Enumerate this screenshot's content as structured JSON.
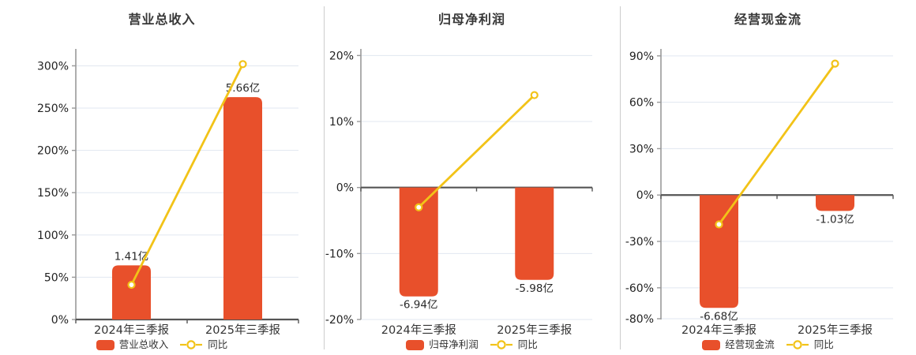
{
  "colors": {
    "bar": "#E8502B",
    "line": "#F2C318",
    "grid": "#E1E7F0",
    "zero_axis": "#555555",
    "y_axis": "#999999",
    "divider": "#CCCCCC",
    "title_text": "#383838",
    "tick_text": "#222222"
  },
  "chart_data": [
    {
      "type": "bar",
      "title": "营业总收入",
      "categories": [
        "2024年三季报",
        "2025年三季报"
      ],
      "series": [
        {
          "name": "营业总收入",
          "kind": "bar",
          "unit": "亿",
          "values": [
            1.41,
            5.66
          ],
          "labels": [
            "1.41亿",
            "5.66亿"
          ],
          "bar_axis_pct": [
            64,
            263
          ]
        },
        {
          "name": "同比",
          "kind": "line",
          "unit": "%",
          "values": [
            41,
            302
          ]
        }
      ],
      "yticks": [
        0,
        50,
        100,
        150,
        200,
        250,
        300
      ],
      "ylim": [
        0,
        320
      ],
      "ytick_suffix": "%",
      "legend_position": "bottom",
      "grid": true
    },
    {
      "type": "bar",
      "title": "归母净利润",
      "categories": [
        "2024年三季报",
        "2025年三季报"
      ],
      "series": [
        {
          "name": "归母净利润",
          "kind": "bar",
          "unit": "亿",
          "values": [
            -6.94,
            -5.98
          ],
          "labels": [
            "-6.94亿",
            "-5.98亿"
          ],
          "bar_axis_pct": [
            -16.5,
            -14.0
          ]
        },
        {
          "name": "同比",
          "kind": "line",
          "unit": "%",
          "values": [
            -3,
            14
          ]
        }
      ],
      "yticks": [
        -20,
        -10,
        0,
        10,
        20
      ],
      "ylim": [
        -20,
        21
      ],
      "ytick_suffix": "%",
      "legend_position": "bottom",
      "grid": true
    },
    {
      "type": "bar",
      "title": "经营现金流",
      "categories": [
        "2024年三季报",
        "2025年三季报"
      ],
      "series": [
        {
          "name": "经营现金流",
          "kind": "bar",
          "unit": "亿",
          "values": [
            -6.68,
            -1.03
          ],
          "labels": [
            "-6.68亿",
            "-1.03亿"
          ],
          "bar_axis_pct": [
            -73,
            -10.3
          ]
        },
        {
          "name": "同比",
          "kind": "line",
          "unit": "%",
          "values": [
            -19,
            85
          ]
        }
      ],
      "yticks": [
        -80,
        -60,
        -30,
        0,
        30,
        60,
        90
      ],
      "ylim": [
        -80.5,
        94.5
      ],
      "ytick_suffix": "%",
      "legend_position": "bottom",
      "grid": true
    }
  ]
}
